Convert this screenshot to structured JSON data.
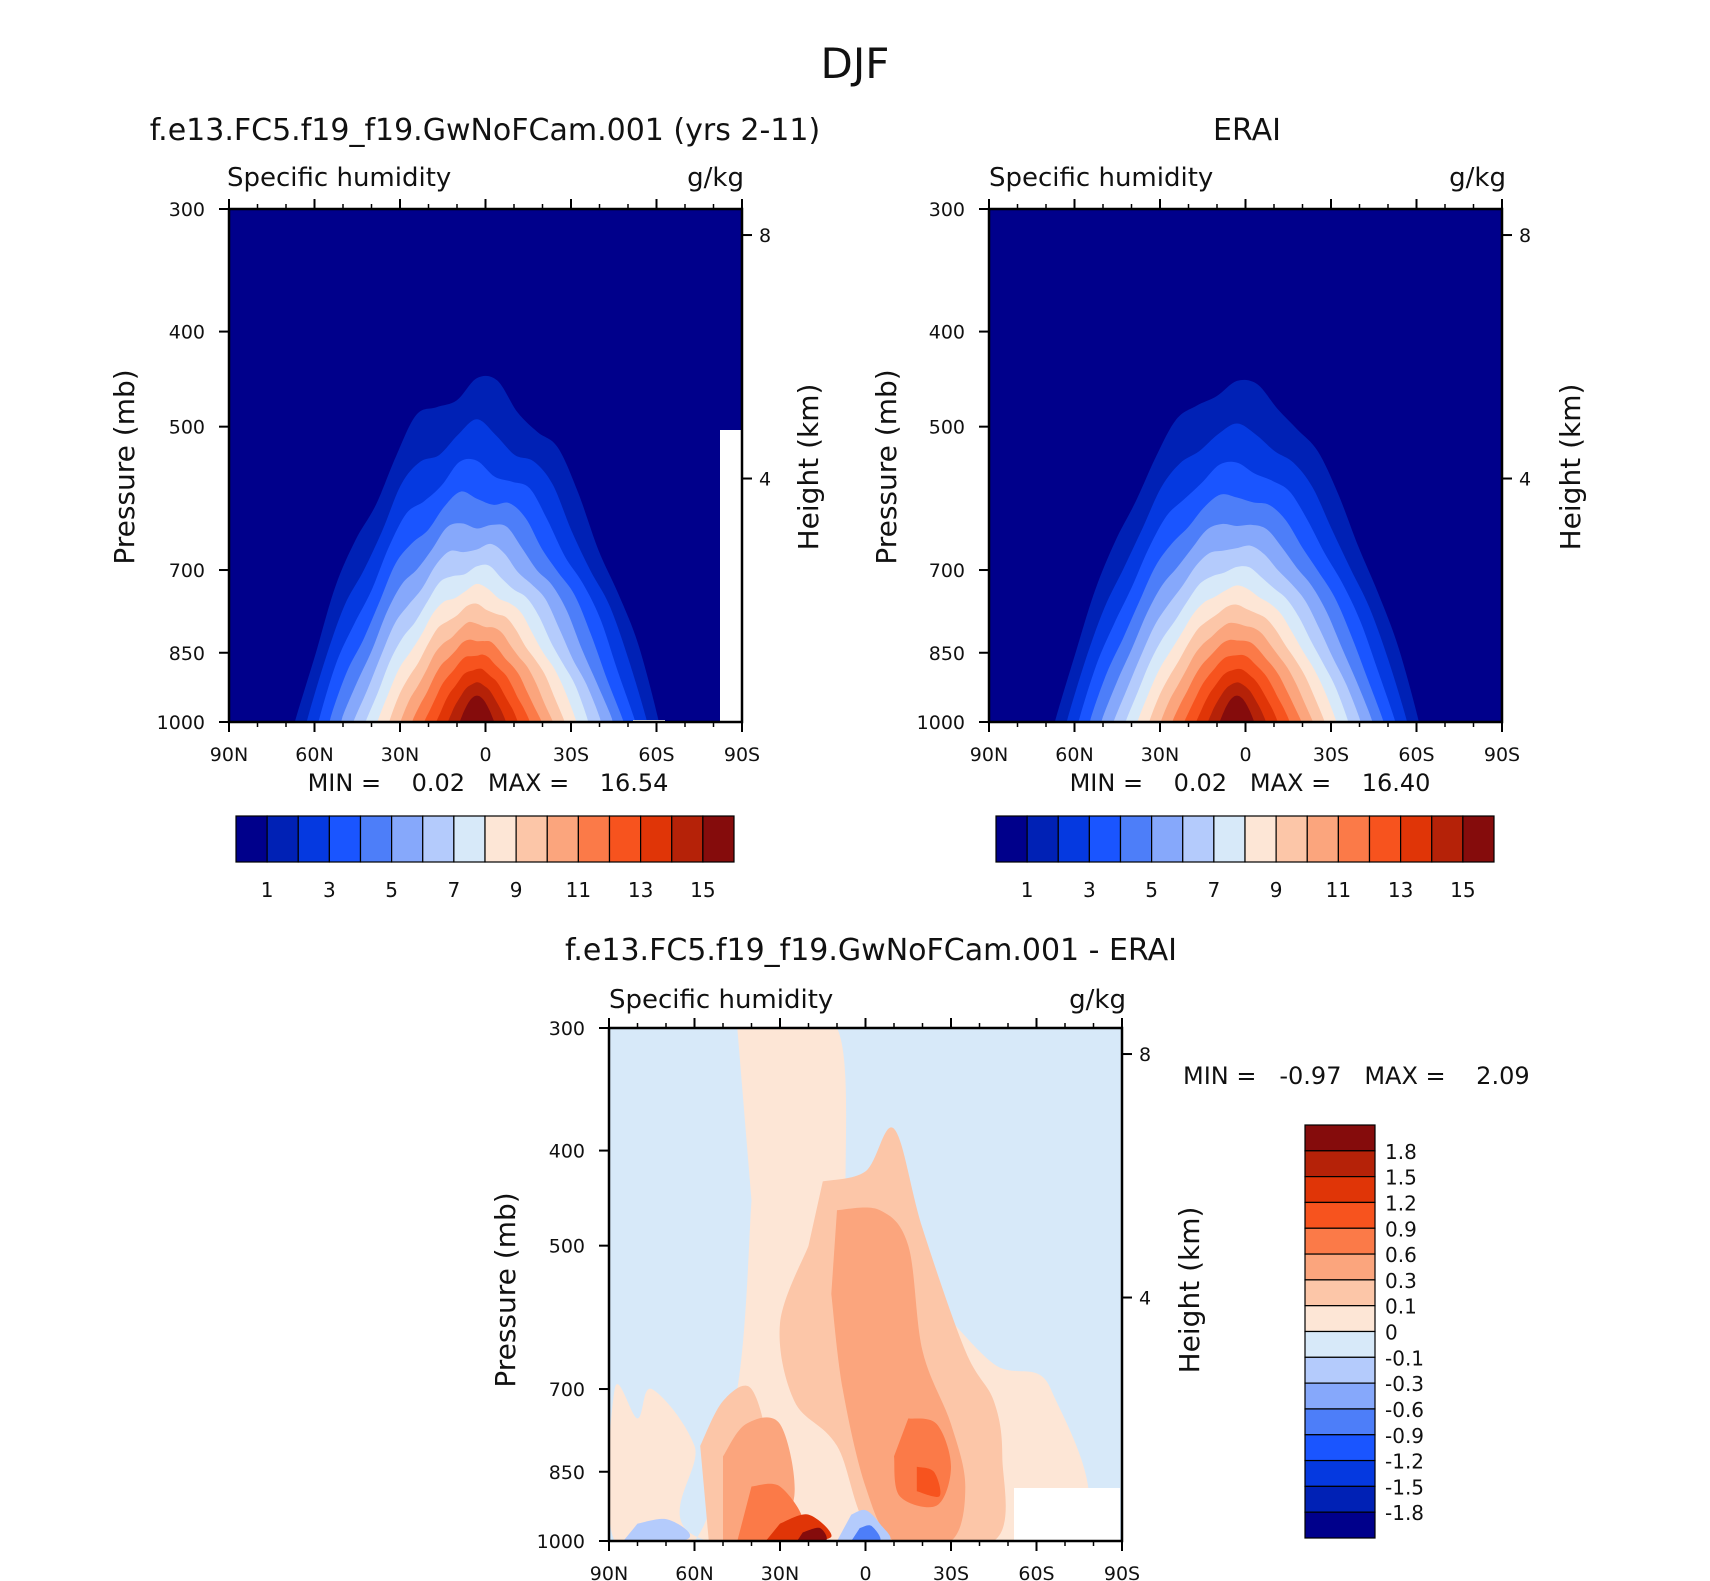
{
  "figure_title": "DJF",
  "chart_data": [
    {
      "type": "heatmap",
      "panel_title": "f.e13.FC5.f19_f19.GwNoFCam.001 (yrs 2-11)",
      "left_label": "Specific humidity",
      "right_label": "g/kg",
      "ylabel": "Pressure (mb)",
      "ylabel_right": "Height (km)",
      "x_ticks": [
        "90N",
        "60N",
        "30N",
        "0",
        "30S",
        "60S",
        "90S"
      ],
      "y_ticks": [
        "300",
        "400",
        "500",
        "700",
        "850",
        "1000"
      ],
      "y_ticks_right": [
        "8",
        "4"
      ],
      "x_range": [
        90,
        -90
      ],
      "y_range": [
        300,
        1000
      ],
      "min_text": "MIN =    0.02   MAX =    16.54",
      "min": 0.02,
      "max": 16.54,
      "colorbar_labels": [
        "1",
        "3",
        "5",
        "7",
        "9",
        "11",
        "13",
        "15"
      ],
      "colors": [
        "#00008b",
        "#0021b5",
        "#0539e0",
        "#1a55ff",
        "#4d7ef9",
        "#86a8fb",
        "#b4cbfc",
        "#d7e9f9",
        "#fde6d6",
        "#fcc6a8",
        "#fba57d",
        "#fb7a48",
        "#f7531e",
        "#e03507",
        "#b52208",
        "#850c0c"
      ]
    },
    {
      "type": "heatmap",
      "panel_title": "ERAI",
      "left_label": "Specific humidity",
      "right_label": "g/kg",
      "ylabel": "Pressure (mb)",
      "ylabel_right": "Height (km)",
      "x_ticks": [
        "90N",
        "60N",
        "30N",
        "0",
        "30S",
        "60S",
        "90S"
      ],
      "y_ticks": [
        "300",
        "400",
        "500",
        "700",
        "850",
        "1000"
      ],
      "y_ticks_right": [
        "8",
        "4"
      ],
      "x_range": [
        90,
        -90
      ],
      "y_range": [
        300,
        1000
      ],
      "min_text": "MIN =    0.02   MAX =    16.40",
      "min": 0.02,
      "max": 16.4,
      "colorbar_labels": [
        "1",
        "3",
        "5",
        "7",
        "9",
        "11",
        "13",
        "15"
      ],
      "colors": [
        "#00008b",
        "#0021b5",
        "#0539e0",
        "#1a55ff",
        "#4d7ef9",
        "#86a8fb",
        "#b4cbfc",
        "#d7e9f9",
        "#fde6d6",
        "#fcc6a8",
        "#fba57d",
        "#fb7a48",
        "#f7531e",
        "#e03507",
        "#b52208",
        "#850c0c"
      ]
    },
    {
      "type": "heatmap",
      "panel_title": "f.e13.FC5.f19_f19.GwNoFCam.001 - ERAI",
      "left_label": "Specific humidity",
      "right_label": "g/kg",
      "ylabel": "Pressure (mb)",
      "ylabel_right": "Height (km)",
      "x_ticks": [
        "90N",
        "60N",
        "30N",
        "0",
        "30S",
        "60S",
        "90S"
      ],
      "y_ticks": [
        "300",
        "400",
        "500",
        "700",
        "850",
        "1000"
      ],
      "y_ticks_right": [
        "8",
        "4"
      ],
      "x_range": [
        90,
        -90
      ],
      "y_range": [
        300,
        1000
      ],
      "min_text": "MIN =   -0.97   MAX =    2.09",
      "min": -0.97,
      "max": 2.09,
      "colorbar_labels": [
        "1.8",
        "1.5",
        "1.2",
        "0.9",
        "0.6",
        "0.3",
        "0.1",
        "0",
        "-0.1",
        "-0.3",
        "-0.6",
        "-0.9",
        "-1.2",
        "-1.5",
        "-1.8"
      ],
      "colors": [
        "#850c0c",
        "#b52208",
        "#e03507",
        "#f7531e",
        "#fb7a48",
        "#fba57d",
        "#fcc6a8",
        "#fde6d6",
        "#d7e9f9",
        "#b4cbfc",
        "#86a8fb",
        "#4d7ef9",
        "#1a55ff",
        "#0539e0",
        "#0021b5",
        "#00008b"
      ]
    }
  ]
}
